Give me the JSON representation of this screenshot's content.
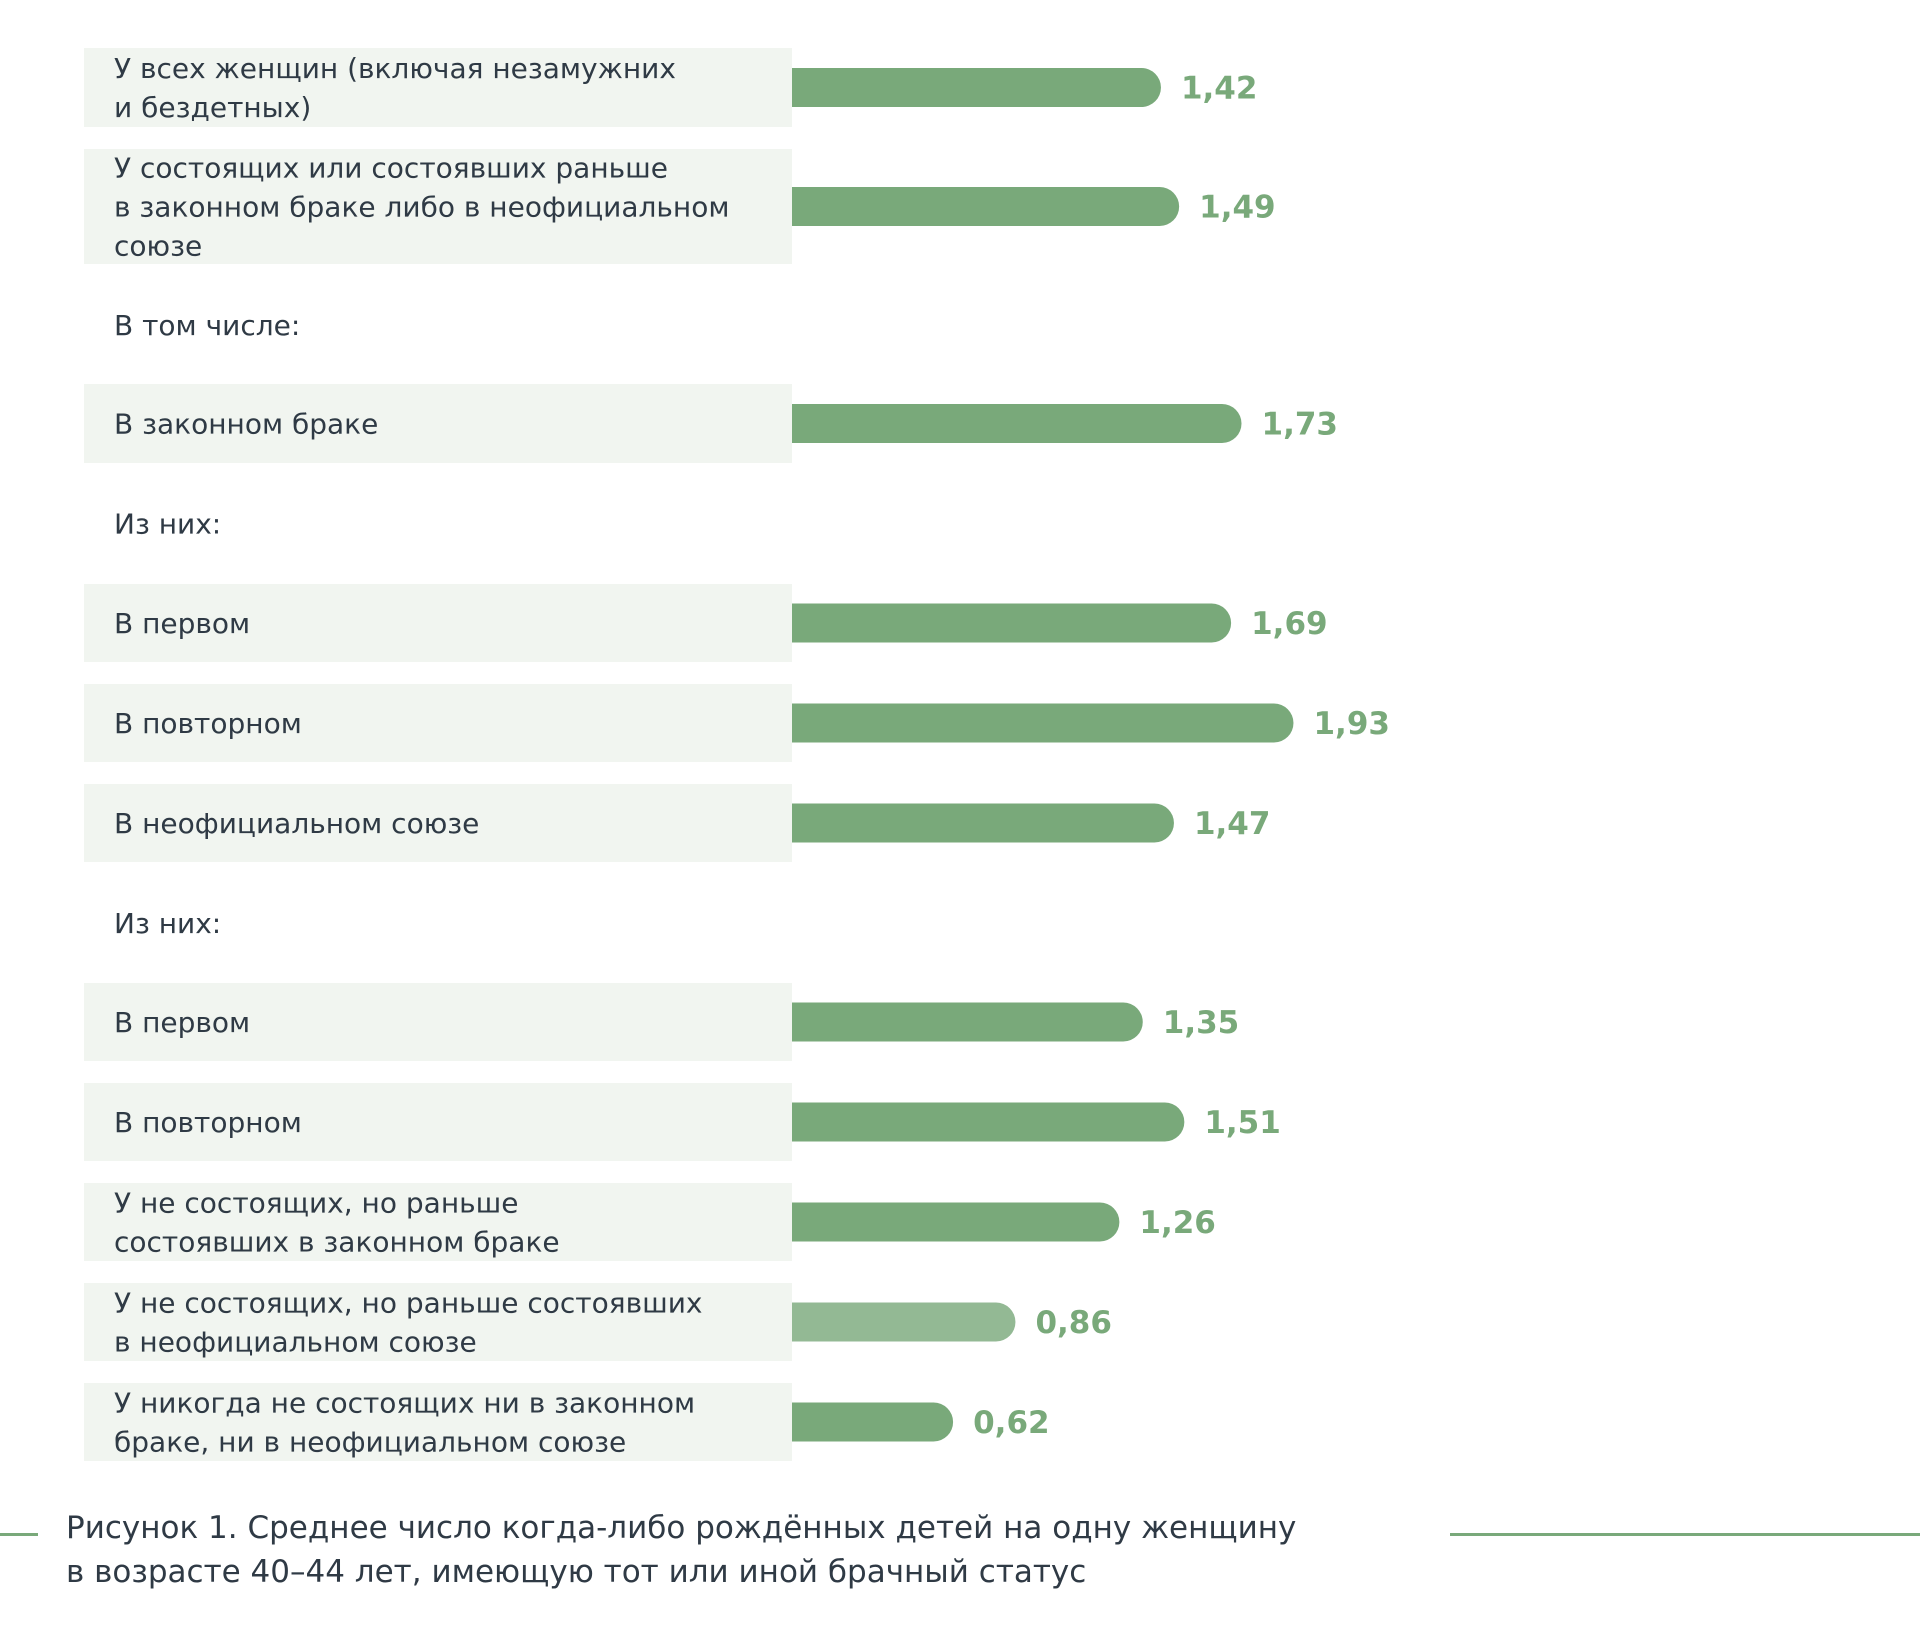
{
  "chart_data": {
    "type": "bar",
    "orientation": "horizontal",
    "rows": [
      {
        "label": [
          "У всех женщин (включая незамужних",
          "и бездетных)"
        ],
        "value": "1,42",
        "v": 1.42
      },
      {
        "label": [
          "У состоящих или состоявших раньше",
          "в законном браке либо в неофициальном",
          "союзе"
        ],
        "value": "1,49",
        "v": 1.49
      },
      {
        "label": [
          "В том числе:"
        ],
        "heading": true
      },
      {
        "label": [
          "В законном браке"
        ],
        "value": "1,73",
        "v": 1.73
      },
      {
        "label": [
          "Из них:"
        ],
        "heading": true
      },
      {
        "label": [
          "В первом"
        ],
        "value": "1,69",
        "v": 1.69
      },
      {
        "label": [
          "В повторном"
        ],
        "value": "1,93",
        "v": 1.93
      },
      {
        "label": [
          "В неофициальном союзе"
        ],
        "value": "1,47",
        "v": 1.47
      },
      {
        "label": [
          "Из них:"
        ],
        "heading": true
      },
      {
        "label": [
          "В первом"
        ],
        "value": "1,35",
        "v": 1.35
      },
      {
        "label": [
          "В повторном"
        ],
        "value": "1,51",
        "v": 1.51
      },
      {
        "label": [
          "У не состоящих, но раньше",
          "состоявших в законном браке"
        ],
        "value": "1,26",
        "v": 1.26
      },
      {
        "label": [
          "У не состоящих, но раньше состоявших",
          "в неофициальном союзе"
        ],
        "value": "0,86",
        "v": 0.86,
        "light": true
      },
      {
        "label": [
          "У никогда не состоящих ни в законном",
          "браке, ни в неофициальном союзе"
        ],
        "value": "0,62",
        "v": 0.62
      }
    ],
    "colors": {
      "bar": "#79a97a",
      "bar_light": "#93b994",
      "row_background": "#f1f5f0"
    }
  },
  "caption": {
    "line1": "Рисунок 1. Среднее число когда-либо рождённых детей на одну женщину",
    "line2": "в возрасте 40–44 лет, имеющую тот или иной брачный статус"
  }
}
